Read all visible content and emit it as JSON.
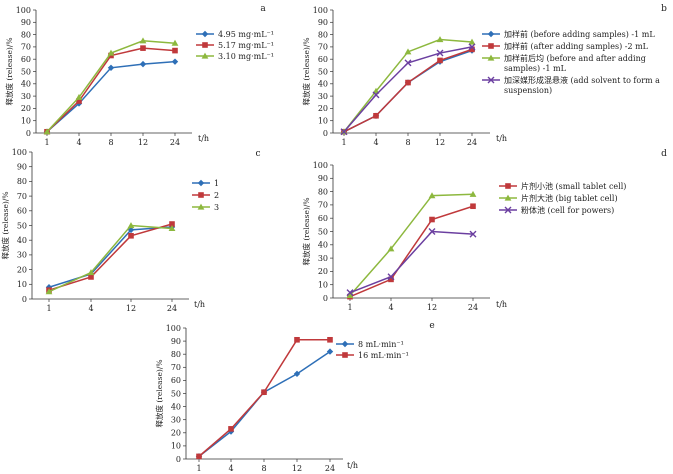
{
  "chart_data": [
    {
      "type": "line",
      "panel_label": "a",
      "categories": [
        "1",
        "4",
        "8",
        "12",
        "24"
      ],
      "x_unit": "t/h",
      "ylabel": "释放度 (release)/%",
      "ylim": [
        0,
        100
      ],
      "ytick_step": 10,
      "series": [
        {
          "name": "4.95 mg·mL⁻¹",
          "color": "#2e6fb7",
          "marker": "diamond",
          "values": [
            1,
            24,
            53,
            56,
            58
          ]
        },
        {
          "name": "5.17 mg·mL⁻¹",
          "color": "#c0393b",
          "marker": "square",
          "values": [
            1,
            26,
            63,
            69,
            67
          ]
        },
        {
          "name": "3.10 mg·mL⁻¹",
          "color": "#8db83e",
          "marker": "triangle",
          "values": [
            1,
            29,
            65,
            75,
            73
          ]
        }
      ]
    },
    {
      "type": "line",
      "panel_label": "b",
      "categories": [
        "1",
        "4",
        "8",
        "12",
        "24"
      ],
      "x_unit": "t/h",
      "ylabel": "释放度 (release)/%",
      "ylim": [
        0,
        100
      ],
      "ytick_step": 10,
      "series": [
        {
          "name": "加样前 (before adding samples) -1 mL",
          "color": "#2e6fb7",
          "marker": "diamond",
          "values": [
            1,
            14,
            41,
            58,
            67
          ]
        },
        {
          "name": "加样前 (after adding samples) -2 mL",
          "color": "#c0393b",
          "marker": "square",
          "values": [
            1,
            14,
            41,
            59,
            68
          ]
        },
        {
          "name": "加样前后均 (before and after adding samples) -1 mL",
          "color": "#8db83e",
          "marker": "triangle",
          "values": [
            1,
            34,
            66,
            76,
            74
          ]
        },
        {
          "name": "加深媒形成混悬液 (add solvent to form a suspension)",
          "color": "#6b3fa0",
          "marker": "x",
          "values": [
            1,
            31,
            57,
            65,
            70
          ]
        }
      ]
    },
    {
      "type": "line",
      "panel_label": "c",
      "categories": [
        "1",
        "4",
        "12",
        "24"
      ],
      "x_unit": "t/h",
      "ylabel": "释放度 (release)/%",
      "ylim": [
        0,
        100
      ],
      "ytick_step": 10,
      "series": [
        {
          "name": "1",
          "color": "#2e6fb7",
          "marker": "diamond",
          "values": [
            8,
            17,
            47,
            49
          ]
        },
        {
          "name": "2",
          "color": "#c0393b",
          "marker": "square",
          "values": [
            6,
            15,
            43,
            51
          ]
        },
        {
          "name": "3",
          "color": "#8db83e",
          "marker": "triangle",
          "values": [
            5,
            18,
            50,
            48
          ]
        }
      ]
    },
    {
      "type": "line",
      "panel_label": "d",
      "categories": [
        "1",
        "4",
        "12",
        "24"
      ],
      "x_unit": "t/h",
      "ylabel": "释放度 (release)/%",
      "ylim": [
        0,
        100
      ],
      "ytick_step": 10,
      "series": [
        {
          "name": "片剂小池 (small tablet cell)",
          "color": "#c0393b",
          "marker": "square",
          "values": [
            1,
            14,
            59,
            69
          ]
        },
        {
          "name": "片剂大池 (big tablet cell)",
          "color": "#8db83e",
          "marker": "triangle",
          "values": [
            2,
            37,
            77,
            78
          ]
        },
        {
          "name": "粉体池 (cell for powers)",
          "color": "#6b3fa0",
          "marker": "x",
          "values": [
            4,
            16,
            50,
            48
          ]
        }
      ]
    },
    {
      "type": "line",
      "panel_label": "e",
      "categories": [
        "1",
        "4",
        "8",
        "12",
        "24"
      ],
      "x_unit": "t/h",
      "ylabel": "释放度 (release)/%",
      "ylim": [
        0,
        100
      ],
      "ytick_step": 10,
      "series": [
        {
          "name": "8 mL·min⁻¹",
          "color": "#2e6fb7",
          "marker": "diamond",
          "values": [
            2,
            21,
            51,
            65,
            82
          ]
        },
        {
          "name": "16 mL·min⁻¹",
          "color": "#c0393b",
          "marker": "square",
          "values": [
            2,
            23,
            51,
            91,
            91
          ]
        }
      ]
    }
  ]
}
